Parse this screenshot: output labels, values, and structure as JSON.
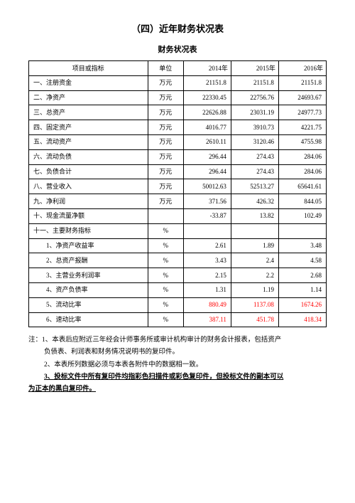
{
  "titles": {
    "main": "（四）近年财务状况表",
    "sub": "财务状况表"
  },
  "table": {
    "headers": {
      "item": "项目或指标",
      "unit": "单位",
      "y2014": "2014年",
      "y2015": "2015年",
      "y2016": "2016年"
    },
    "rows": [
      {
        "item": "一、注册资金",
        "indent": false,
        "unit": "万元",
        "v14": "21151.8",
        "v15": "21151.8",
        "v16": "21151.8"
      },
      {
        "item": "二、净资产",
        "indent": false,
        "unit": "万元",
        "v14": "22330.45",
        "v15": "22756.76",
        "v16": "24693.67"
      },
      {
        "item": "三、总资产",
        "indent": false,
        "unit": "万元",
        "v14": "22626.88",
        "v15": "23031.19",
        "v16": "24977.73"
      },
      {
        "item": "四、固定资产",
        "indent": false,
        "unit": "万元",
        "v14": "4016.77",
        "v15": "3910.73",
        "v16": "4221.75"
      },
      {
        "item": "五、流动资产",
        "indent": false,
        "unit": "万元",
        "v14": "2610.11",
        "v15": "3120.46",
        "v16": "4755.98"
      },
      {
        "item": "六、流动负债",
        "indent": false,
        "unit": "万元",
        "v14": "296.44",
        "v15": "274.43",
        "v16": "284.06"
      },
      {
        "item": "七、负债合计",
        "indent": false,
        "unit": "万元",
        "v14": "296.44",
        "v15": "274.43",
        "v16": "284.06"
      },
      {
        "item": "八、营业收入",
        "indent": false,
        "unit": "万元",
        "v14": "50012.63",
        "v15": "52513.27",
        "v16": "65641.61"
      },
      {
        "item": "九、净利润",
        "indent": false,
        "unit": "万元",
        "v14": "371.56",
        "v15": "426.32",
        "v16": "844.05"
      },
      {
        "item": "十、现金流量净额",
        "indent": false,
        "unit": "",
        "v14": "-33.87",
        "v15": "13.82",
        "v16": "102.49"
      },
      {
        "item": "十一、主要财务指标",
        "indent": false,
        "unit": "%",
        "v14": "",
        "v15": "",
        "v16": ""
      },
      {
        "item": "1、净资产收益率",
        "indent": true,
        "unit": "%",
        "v14": "2.61",
        "v15": "1.89",
        "v16": "3.48"
      },
      {
        "item": "2、总资产报酬",
        "indent": true,
        "unit": "%",
        "v14": "3.43",
        "v15": "2.4",
        "v16": "4.58"
      },
      {
        "item": "3、主营业务利润率",
        "indent": true,
        "unit": "%",
        "v14": "2.15",
        "v15": "2.2",
        "v16": "2.68"
      },
      {
        "item": "4、资产负债率",
        "indent": true,
        "unit": "%",
        "v14": "1.31",
        "v15": "1.19",
        "v16": "1.14"
      },
      {
        "item": "5、流动比率",
        "indent": true,
        "unit": "%",
        "v14": "880.49",
        "v15": "1137.08",
        "v16": "1674.26",
        "red": true
      },
      {
        "item": "6、速动比率",
        "indent": true,
        "unit": "%",
        "v14": "387.11",
        "v15": "451.78",
        "v16": "418.34",
        "red": true
      }
    ]
  },
  "notes": {
    "prefix": "注：",
    "n1a": "1、本表后应附近三年经会计师事务所或审计机构审计的财务会计报表，包括资产",
    "n1b": "负债表、利润表和财务情况说明书的复印件。",
    "n2": "2、本表所列数据必须与本表各附件中的数据相一致。",
    "n3a": "3、投标文件中所有复印件均指彩色扫描件或彩色复印件，但投标文件的副本可以",
    "n3b": "为正本的黑白复印件。"
  },
  "styles": {
    "red_color": "#ff0000",
    "text_color": "#000000",
    "bg_color": "#ffffff"
  }
}
